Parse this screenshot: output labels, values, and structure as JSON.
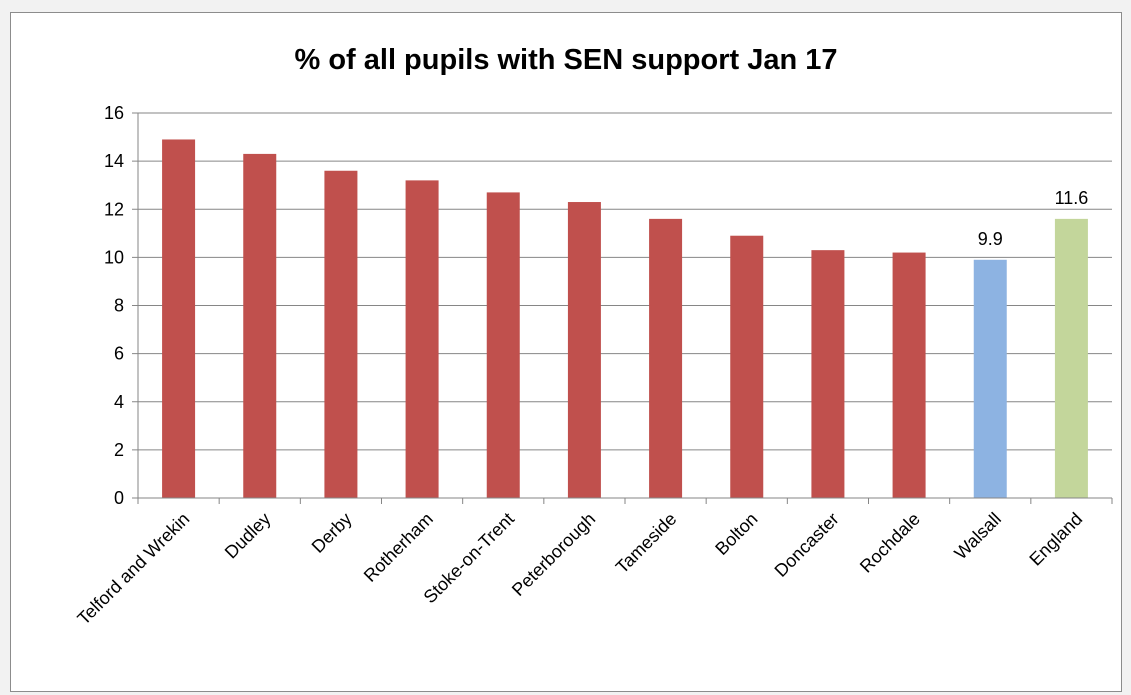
{
  "chart_data": {
    "type": "bar",
    "title": "%  of all pupils with SEN support Jan 17",
    "xlabel": "",
    "ylabel": "",
    "ylim": [
      0,
      16
    ],
    "y_ticks": [
      "0",
      "2",
      "4",
      "6",
      "8",
      "10",
      "12",
      "14",
      "16"
    ],
    "grid": true,
    "legend": "none",
    "categories": [
      "Telford and Wrekin",
      "Dudley",
      "Derby",
      "Rotherham",
      "Stoke-on-Trent",
      "Peterborough",
      "Tameside",
      "Bolton",
      "Doncaster",
      "Rochdale",
      "Walsall",
      "England"
    ],
    "values": [
      14.9,
      14.3,
      13.6,
      13.2,
      12.7,
      12.3,
      11.6,
      10.9,
      10.3,
      10.2,
      9.9,
      11.6
    ],
    "colors": [
      "#c0504d",
      "#c0504d",
      "#c0504d",
      "#c0504d",
      "#c0504d",
      "#c0504d",
      "#c0504d",
      "#c0504d",
      "#c0504d",
      "#c0504d",
      "#8db3e2",
      "#c3d69b"
    ],
    "data_labels": [
      "",
      "",
      "",
      "",
      "",
      "",
      "",
      "",
      "",
      "",
      "9.9",
      "11.6"
    ]
  }
}
